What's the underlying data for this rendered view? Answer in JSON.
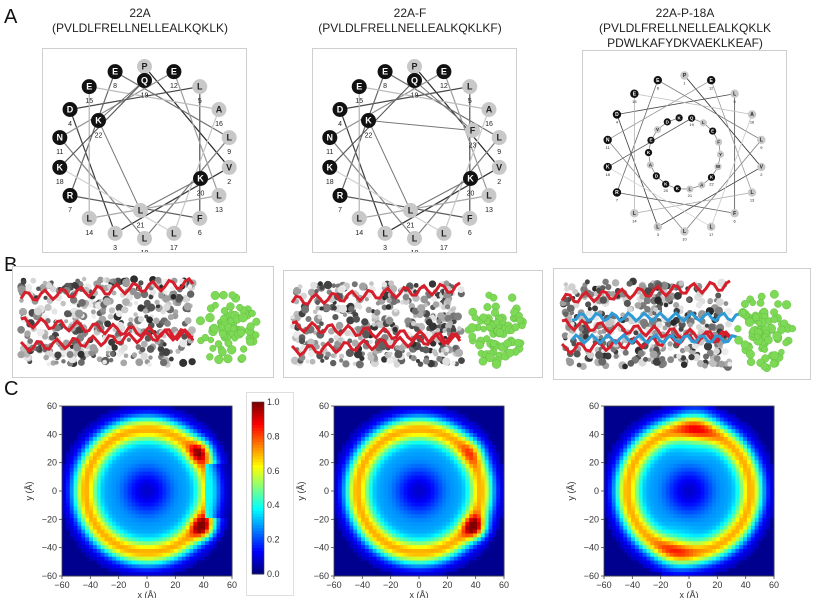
{
  "panel_letters": [
    "A",
    "B",
    "C"
  ],
  "peptides": [
    {
      "name": "22A",
      "sequence": "(PVLDLFRELLNELLEALKQKLK)"
    },
    {
      "name": "22A-F",
      "sequence": "(PVLDLFRELLNELLEALKQKLKF)"
    },
    {
      "name": "22A-P-18A",
      "sequence": "(PVLDLFRELLNELLEALKQKLK",
      "sequence_line2": "PDWLKAFYDKVAEKLKEAF)"
    }
  ],
  "wheels": [
    {
      "residues": [
        {
          "aa": "P",
          "num": "1",
          "polar": false
        },
        {
          "aa": "E",
          "num": "12",
          "polar": true
        },
        {
          "aa": "L",
          "num": "5",
          "polar": false
        },
        {
          "aa": "A",
          "num": "16",
          "polar": false
        },
        {
          "aa": "L",
          "num": "9",
          "polar": false
        },
        {
          "aa": "V",
          "num": "2",
          "polar": false
        },
        {
          "aa": "L",
          "num": "13",
          "polar": false
        },
        {
          "aa": "F",
          "num": "6",
          "polar": false
        },
        {
          "aa": "L",
          "num": "17",
          "polar": false
        },
        {
          "aa": "L",
          "num": "10",
          "polar": false
        },
        {
          "aa": "L",
          "num": "3",
          "polar": false
        },
        {
          "aa": "L",
          "num": "14",
          "polar": false
        },
        {
          "aa": "R",
          "num": "7",
          "polar": true
        },
        {
          "aa": "K",
          "num": "18",
          "polar": true
        },
        {
          "aa": "N",
          "num": "11",
          "polar": true
        },
        {
          "aa": "D",
          "num": "4",
          "polar": true
        },
        {
          "aa": "E",
          "num": "15",
          "polar": true
        },
        {
          "aa": "E",
          "num": "8",
          "polar": true
        }
      ],
      "inner": [
        {
          "aa": "Q",
          "num": "19"
        },
        {
          "aa": "K",
          "num": "22"
        },
        {
          "aa": "L",
          "num": "21"
        },
        {
          "aa": "K",
          "num": "20"
        }
      ]
    },
    {
      "residues": [
        {
          "aa": "P",
          "num": "1",
          "polar": false
        },
        {
          "aa": "E",
          "num": "12",
          "polar": true
        },
        {
          "aa": "L",
          "num": "5",
          "polar": false
        },
        {
          "aa": "A",
          "num": "16",
          "polar": false
        },
        {
          "aa": "L",
          "num": "9",
          "polar": false
        },
        {
          "aa": "V",
          "num": "2",
          "polar": false
        },
        {
          "aa": "L",
          "num": "13",
          "polar": false
        },
        {
          "aa": "F",
          "num": "6",
          "polar": false
        },
        {
          "aa": "L",
          "num": "17",
          "polar": false
        },
        {
          "aa": "L",
          "num": "10",
          "polar": false
        },
        {
          "aa": "L",
          "num": "3",
          "polar": false
        },
        {
          "aa": "L",
          "num": "14",
          "polar": false
        },
        {
          "aa": "R",
          "num": "7",
          "polar": true
        },
        {
          "aa": "K",
          "num": "18",
          "polar": true
        },
        {
          "aa": "N",
          "num": "11",
          "polar": true
        },
        {
          "aa": "D",
          "num": "4",
          "polar": true
        },
        {
          "aa": "E",
          "num": "15",
          "polar": true
        },
        {
          "aa": "E",
          "num": "8",
          "polar": true
        }
      ],
      "inner": [
        {
          "aa": "Q",
          "num": "19"
        },
        {
          "aa": "F",
          "num": "23"
        },
        {
          "aa": "K",
          "num": "22"
        },
        {
          "aa": "L",
          "num": "21"
        },
        {
          "aa": "K",
          "num": "20"
        }
      ]
    },
    {
      "residues": [
        {
          "aa": "P",
          "num": "1",
          "polar": false
        },
        {
          "aa": "E",
          "num": "12",
          "polar": true
        },
        {
          "aa": "L",
          "num": "5",
          "polar": false
        },
        {
          "aa": "A",
          "num": "16",
          "polar": false
        },
        {
          "aa": "L",
          "num": "9",
          "polar": false
        },
        {
          "aa": "V",
          "num": "2",
          "polar": false
        },
        {
          "aa": "L",
          "num": "13",
          "polar": false
        },
        {
          "aa": "F",
          "num": "6",
          "polar": false
        },
        {
          "aa": "L",
          "num": "17",
          "polar": false
        },
        {
          "aa": "L",
          "num": "10",
          "polar": false
        },
        {
          "aa": "L",
          "num": "3",
          "polar": false
        },
        {
          "aa": "L",
          "num": "14",
          "polar": false
        },
        {
          "aa": "R",
          "num": "7",
          "polar": true
        },
        {
          "aa": "K",
          "num": "18",
          "polar": true
        },
        {
          "aa": "N",
          "num": "11",
          "polar": true
        },
        {
          "aa": "D",
          "num": "4",
          "polar": true
        },
        {
          "aa": "E",
          "num": "15",
          "polar": true
        },
        {
          "aa": "E",
          "num": "8",
          "polar": true
        }
      ],
      "inner": [
        {
          "aa": "Q",
          "num": "19"
        },
        {
          "aa": "L",
          "num": ""
        },
        {
          "aa": "E",
          "num": ""
        },
        {
          "aa": "F",
          "num": ""
        },
        {
          "aa": "Y",
          "num": ""
        },
        {
          "aa": "W",
          "num": ""
        },
        {
          "aa": "K",
          "num": "22"
        },
        {
          "aa": "A",
          "num": ""
        },
        {
          "aa": "L",
          "num": "21"
        },
        {
          "aa": "K",
          "num": ""
        },
        {
          "aa": "K",
          "num": "20"
        },
        {
          "aa": "D",
          "num": ""
        },
        {
          "aa": "A",
          "num": ""
        },
        {
          "aa": "K",
          "num": ""
        },
        {
          "aa": "E",
          "num": ""
        },
        {
          "aa": "V",
          "num": ""
        },
        {
          "aa": "D",
          "num": ""
        },
        {
          "aa": "K",
          "num": ""
        }
      ]
    }
  ],
  "heatmaps": {
    "xlabel": "x (Å)",
    "ylabel": "y (Å)",
    "ticks": [
      "−60",
      "−40",
      "−20",
      "0",
      "20",
      "40",
      "60"
    ],
    "colorbar_ticks": [
      "0.0",
      "0.2",
      "0.4",
      "0.6",
      "0.8",
      "1.0"
    ]
  },
  "colors": {
    "polar": "#111111",
    "nonpolar": "#c8c8c8",
    "protein_red": "#d61f2c",
    "protein_blue": "#2e9ad6",
    "apoa_green": "#7ed957"
  }
}
